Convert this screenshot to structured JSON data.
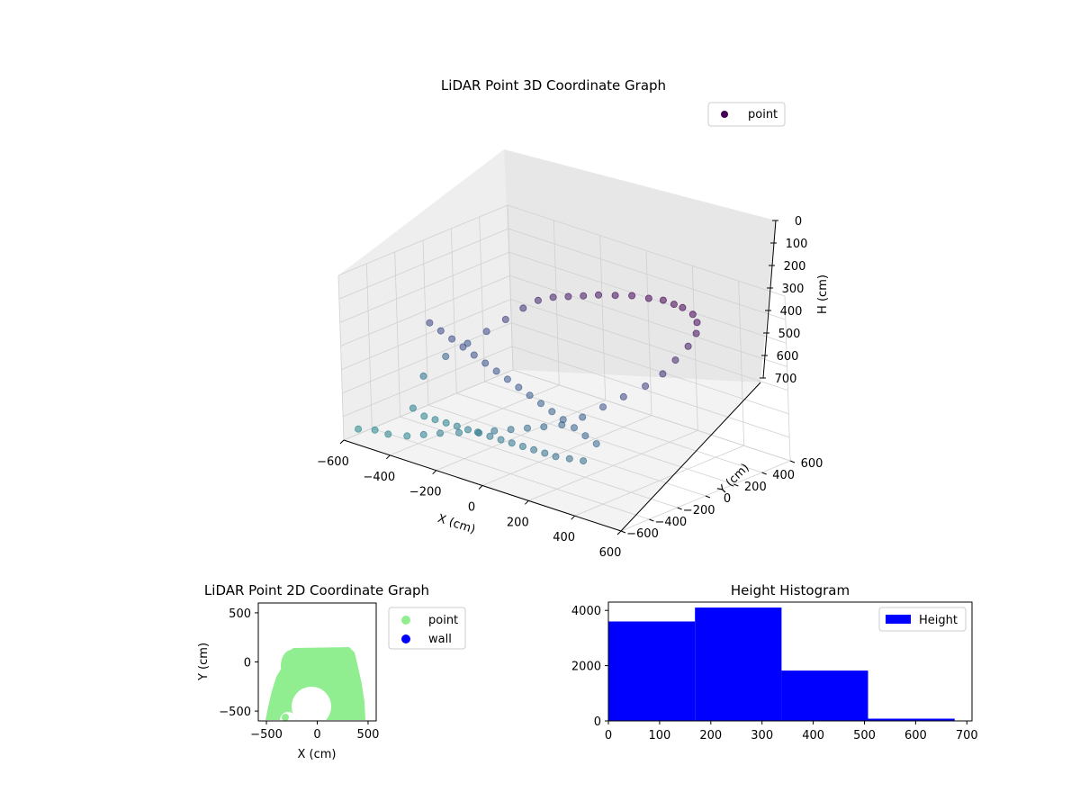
{
  "chart_data": [
    {
      "type": "scatter",
      "title": "LiDAR Point 3D Coordinate Graph",
      "xlabel": "X (cm)",
      "ylabel": "Y (cm)",
      "zlabel": "H (cm)",
      "xlim": [
        -600,
        600
      ],
      "ylim": [
        -600,
        600
      ],
      "zlim": [
        0,
        700
      ],
      "z_inverted": true,
      "xticks": [
        "−600",
        "−400",
        "−200",
        "0",
        "200",
        "400",
        "600"
      ],
      "yticks": [
        "−600",
        "−400",
        "−200",
        "0",
        "200",
        "400",
        "600"
      ],
      "zticks": [
        "0",
        "100",
        "200",
        "300",
        "400",
        "500",
        "600",
        "700"
      ],
      "legend": {
        "labels": [
          "point"
        ],
        "location": "top-right"
      },
      "colormap": [
        "#440154",
        "#3b528b",
        "#21918c"
      ],
      "grid": true,
      "series": [
        {
          "name": "point",
          "x": [
            -560,
            -500,
            -430,
            -360,
            -300,
            -240,
            -170,
            -100,
            -40,
            20,
            80,
            140,
            200,
            260,
            320,
            380,
            440,
            480,
            500,
            520,
            520,
            500,
            470,
            420,
            380,
            330,
            270,
            200,
            130,
            60,
            0,
            -60,
            -120,
            -180,
            -240,
            -300,
            -360,
            -420,
            -480,
            -530,
            -480,
            -420,
            -360,
            -300,
            -240,
            -180,
            -120,
            -60,
            0,
            60,
            120,
            180,
            240,
            300,
            360,
            420,
            -520,
            -460,
            -400,
            -340,
            -280,
            -220,
            -160,
            -100,
            -40,
            20,
            80,
            140,
            200,
            260,
            320,
            380
          ],
          "y": [
            -560,
            -540,
            -560,
            -540,
            -520,
            -500,
            -480,
            -460,
            -440,
            -420,
            -400,
            -380,
            -350,
            -300,
            -250,
            -200,
            -140,
            -80,
            -20,
            40,
            100,
            140,
            160,
            170,
            175,
            180,
            175,
            170,
            165,
            160,
            150,
            140,
            130,
            120,
            110,
            80,
            40,
            0,
            -60,
            -140,
            -300,
            -320,
            -340,
            -360,
            -380,
            -400,
            -420,
            -440,
            -460,
            -480,
            -500,
            -520,
            -540,
            -560,
            -560,
            -560,
            -100,
            -120,
            -140,
            -160,
            -180,
            -200,
            -220,
            -240,
            -260,
            -280,
            -300,
            -320,
            -340,
            -360,
            -380,
            -400
          ],
          "z": [
            650,
            640,
            630,
            620,
            600,
            580,
            560,
            540,
            520,
            500,
            480,
            460,
            440,
            400,
            350,
            300,
            250,
            200,
            150,
            100,
            60,
            30,
            10,
            0,
            0,
            0,
            10,
            20,
            40,
            60,
            80,
            100,
            120,
            150,
            200,
            260,
            320,
            380,
            440,
            520,
            600,
            610,
            600,
            590,
            580,
            570,
            560,
            550,
            540,
            530,
            520,
            510,
            500,
            490,
            480,
            470,
            300,
            310,
            320,
            330,
            340,
            350,
            360,
            370,
            380,
            390,
            400,
            410,
            420,
            430,
            440,
            450
          ]
        }
      ]
    },
    {
      "type": "scatter",
      "title": "LiDAR Point 2D Coordinate Graph",
      "xlabel": "X (cm)",
      "ylabel": "Y (cm)",
      "xlim": [
        -580,
        580
      ],
      "ylim": [
        -600,
        600
      ],
      "xticks": [
        "−500",
        "0",
        "500"
      ],
      "yticks": [
        "−500",
        "0",
        "500"
      ],
      "legend": {
        "labels": [
          "point",
          "wall"
        ],
        "location": "outside-right"
      },
      "series": [
        {
          "name": "point",
          "color": "#90ee90"
        },
        {
          "name": "wall",
          "color": "#0000ff"
        }
      ]
    },
    {
      "type": "bar",
      "title": "Height Histogram",
      "xlabel": "",
      "ylabel": "",
      "bin_edges": [
        0,
        169,
        338,
        507,
        676
      ],
      "values": [
        3600,
        4100,
        1820,
        80
      ],
      "xlim": [
        0,
        710
      ],
      "ylim": [
        0,
        4300
      ],
      "xticks": [
        "0",
        "100",
        "200",
        "300",
        "400",
        "500",
        "600",
        "700"
      ],
      "yticks": [
        "0",
        "2000",
        "4000"
      ],
      "legend": {
        "labels": [
          "Height"
        ],
        "location": "top-right"
      },
      "color": "#0000ff"
    }
  ]
}
